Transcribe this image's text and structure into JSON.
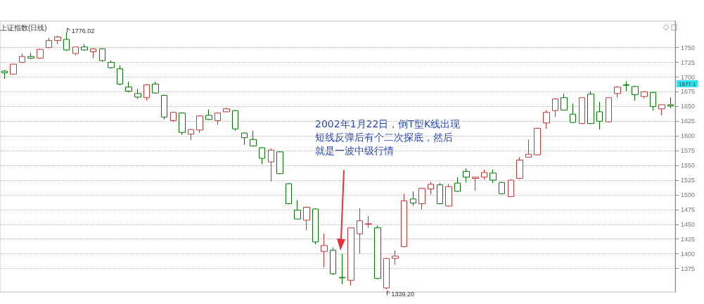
{
  "chart_data": {
    "type": "candlestick",
    "title": "上证指数(日线)",
    "categories": [
      null,
      null,
      null,
      null,
      null,
      null,
      null,
      null,
      null,
      null,
      null,
      null,
      null,
      null,
      null,
      null,
      null,
      null,
      null,
      null,
      null,
      null,
      null,
      null,
      null,
      null,
      null,
      null,
      null,
      null,
      null,
      null,
      null,
      null,
      null,
      null,
      null,
      null,
      null,
      null,
      null,
      null,
      null,
      null,
      null,
      null,
      null,
      null,
      null,
      null,
      null,
      null,
      null,
      null,
      null,
      null,
      null,
      null,
      null,
      null,
      null,
      null,
      null,
      null,
      null,
      null,
      null,
      null,
      null,
      null,
      null,
      null,
      null,
      null,
      null,
      null
    ],
    "ohlc": [
      [
        1710,
        1712,
        1697,
        1707
      ],
      [
        1705,
        1722,
        1704,
        1722
      ],
      [
        1725,
        1740,
        1724,
        1735
      ],
      [
        1735,
        1741,
        1730,
        1732
      ],
      [
        1732,
        1748,
        1731,
        1747
      ],
      [
        1750,
        1767,
        1749,
        1762
      ],
      [
        1762,
        1770,
        1756,
        1768
      ],
      [
        1764,
        1776.02,
        1744,
        1746
      ],
      [
        1740,
        1751,
        1737,
        1751
      ],
      [
        1751,
        1756,
        1745,
        1746
      ],
      [
        1743,
        1749,
        1732,
        1748
      ],
      [
        1748,
        1749,
        1726,
        1728
      ],
      [
        1725,
        1728,
        1714,
        1716
      ],
      [
        1714,
        1720,
        1686,
        1688
      ],
      [
        1683,
        1692,
        1674,
        1676
      ],
      [
        1672,
        1680,
        1663,
        1666
      ],
      [
        1665,
        1688,
        1660,
        1687
      ],
      [
        1688,
        1692,
        1672,
        1673
      ],
      [
        1669,
        1670,
        1628,
        1632
      ],
      [
        1626,
        1641,
        1624,
        1640
      ],
      [
        1639,
        1640,
        1602,
        1606
      ],
      [
        1603,
        1612,
        1593,
        1611
      ],
      [
        1610,
        1635,
        1605,
        1634
      ],
      [
        1635,
        1645,
        1627,
        1628
      ],
      [
        1626,
        1640,
        1619,
        1639
      ],
      [
        1641,
        1648,
        1640,
        1646
      ],
      [
        1643,
        1644,
        1609,
        1612
      ],
      [
        1605,
        1606,
        1585,
        1597
      ],
      [
        1594,
        1609,
        1582,
        1583
      ],
      [
        1580,
        1581,
        1552,
        1562
      ],
      [
        1556,
        1579,
        1523,
        1576
      ],
      [
        1573,
        1574,
        1535,
        1536
      ],
      [
        1519,
        1520,
        1484,
        1485
      ],
      [
        1474,
        1491,
        1458,
        1459
      ],
      [
        1457,
        1480,
        1440,
        1479
      ],
      [
        1476,
        1477,
        1416,
        1420
      ],
      [
        1404,
        1434,
        1377,
        1414
      ],
      [
        1406,
        1411,
        1364,
        1366
      ],
      [
        1360,
        1400,
        1348,
        1359
      ],
      [
        1355,
        1445,
        1346,
        1444
      ],
      [
        1434,
        1477,
        1400,
        1456
      ],
      [
        1450,
        1464,
        1444,
        1451
      ],
      [
        1444,
        1448,
        1357,
        1358
      ],
      [
        1342,
        1393,
        1339.2,
        1392
      ],
      [
        1392,
        1406,
        1381,
        1396
      ],
      [
        1412,
        1502,
        1411,
        1490
      ],
      [
        1493,
        1506,
        1481,
        1486
      ],
      [
        1485,
        1512,
        1475,
        1511
      ],
      [
        1510,
        1522,
        1501,
        1518
      ],
      [
        1517,
        1520,
        1484,
        1485
      ],
      [
        1481,
        1519,
        1480,
        1514
      ],
      [
        1520,
        1530,
        1505,
        1506
      ],
      [
        1540,
        1545,
        1521,
        1530
      ],
      [
        1528,
        1530,
        1507,
        1530
      ],
      [
        1530,
        1543,
        1526,
        1538
      ],
      [
        1537,
        1543,
        1520,
        1525
      ],
      [
        1521,
        1522,
        1501,
        1502
      ],
      [
        1497,
        1526,
        1496,
        1525
      ],
      [
        1528,
        1564,
        1527,
        1559
      ],
      [
        1564,
        1594,
        1563,
        1569
      ],
      [
        1568,
        1614,
        1567,
        1613
      ],
      [
        1622,
        1644,
        1612,
        1640
      ],
      [
        1643,
        1664,
        1632,
        1663
      ],
      [
        1665,
        1672,
        1643,
        1644
      ],
      [
        1637,
        1655,
        1622,
        1623
      ],
      [
        1621,
        1665,
        1620,
        1665
      ],
      [
        1671,
        1676,
        1620,
        1621
      ],
      [
        1641,
        1658,
        1611,
        1625
      ],
      [
        1624,
        1665,
        1623,
        1665
      ],
      [
        1672,
        1685,
        1665,
        1683
      ],
      [
        1687,
        1693,
        1676,
        1686
      ],
      [
        1684,
        1685,
        1660,
        1670
      ],
      [
        1667,
        1676,
        1664,
        1675
      ],
      [
        1674,
        1675,
        1643,
        1650
      ],
      [
        1646,
        1653,
        1635,
        1653
      ],
      [
        1653,
        1666,
        1647,
        1651
      ]
    ],
    "colors": [
      "#007a00",
      "#cc3333",
      "#cc3333",
      "#007a00",
      "#cc3333",
      "#cc3333",
      "#cc3333",
      "#007a00",
      "#cc3333",
      "#007a00",
      "#cc3333",
      "#007a00",
      "#007a00",
      "#007a00",
      "#007a00",
      "#007a00",
      "#cc3333",
      "#007a00",
      "#007a00",
      "#cc3333",
      "#007a00",
      "#cc3333",
      "#cc3333",
      "#007a00",
      "#cc3333",
      "#cc3333",
      "#007a00",
      "#007a00",
      "#007a00",
      "#007a00",
      "#cc3333",
      "#007a00",
      "#007a00",
      "#007a00",
      "#cc3333",
      "#007a00",
      "#cc3333",
      "#007a00",
      "#007a00",
      "#cc3333",
      "#cc3333",
      "#cc3333",
      "#007a00",
      "#cc3333",
      "#cc3333",
      "#cc3333",
      "#007a00",
      "#cc3333",
      "#cc3333",
      "#007a00",
      "#cc3333",
      "#007a00",
      "#007a00",
      "#cc3333",
      "#cc3333",
      "#007a00",
      "#007a00",
      "#cc3333",
      "#cc3333",
      "#cc3333",
      "#cc3333",
      "#cc3333",
      "#cc3333",
      "#007a00",
      "#007a00",
      "#cc3333",
      "#007a00",
      "#007a00",
      "#cc3333",
      "#cc3333",
      "#007a00",
      "#007a00",
      "#cc3333",
      "#007a00",
      "#cc3333",
      "#007a00"
    ],
    "ylim": [
      1335,
      1795
    ],
    "yticks": [
      1375,
      1400,
      1425,
      1450,
      1475,
      1500,
      1525,
      1550,
      1575,
      1600,
      1625,
      1650,
      1675,
      1700,
      1725,
      1750
    ],
    "grid": "y",
    "annotations": [
      "1776.02",
      "1339.20",
      "1677.1",
      "2002年1月22日，倒T型K线出现短线反弹后有个二次探底，然后就是一波中级行情"
    ]
  }
}
